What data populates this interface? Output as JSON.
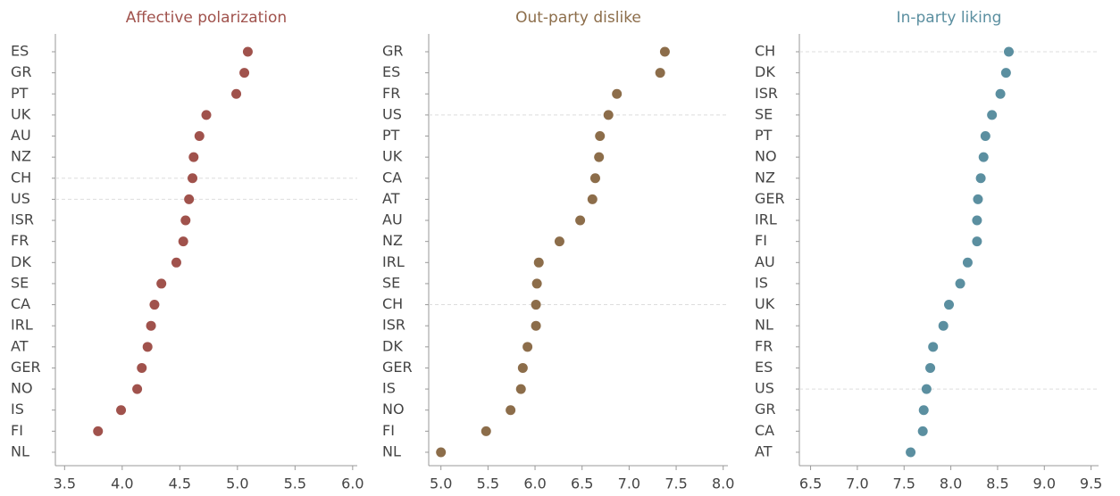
{
  "chart_data": [
    {
      "type": "dot",
      "title": "Affective polarization",
      "color": "#a0524c",
      "categories": [
        "ES",
        "GR",
        "PT",
        "UK",
        "AU",
        "NZ",
        "CH",
        "US",
        "ISR",
        "FR",
        "DK",
        "SE",
        "CA",
        "IRL",
        "AT",
        "GER",
        "NO",
        "IS",
        "FI",
        "NL"
      ],
      "values": [
        5.09,
        5.06,
        4.99,
        4.73,
        4.67,
        4.62,
        4.61,
        4.58,
        4.55,
        4.53,
        4.47,
        4.34,
        4.28,
        4.25,
        4.22,
        4.17,
        4.13,
        3.99,
        3.79,
        null
      ],
      "xlim": [
        3.42,
        6.04
      ],
      "xticks": [
        3.5,
        {
          "value": 4,
          "label": "4.0"
        },
        4.5,
        {
          "value": 5,
          "label": "5.0"
        },
        5.5,
        {
          "value": 6,
          "label": "6.0"
        }
      ],
      "highlight": [
        "CH",
        "US"
      ]
    },
    {
      "type": "dot",
      "title": "Out-party dislike",
      "color": "#8c6d4a",
      "categories": [
        "GR",
        "ES",
        "FR",
        "US",
        "PT",
        "UK",
        "CA",
        "AT",
        "AU",
        "NZ",
        "IRL",
        "SE",
        "CH",
        "ISR",
        "DK",
        "GER",
        "IS",
        "NO",
        "FI",
        "NL"
      ],
      "values": [
        7.38,
        7.33,
        6.87,
        6.78,
        6.69,
        6.68,
        6.64,
        6.61,
        6.48,
        6.26,
        6.04,
        6.02,
        6.01,
        6.01,
        5.92,
        5.87,
        5.85,
        5.74,
        5.48,
        5.0
      ],
      "xlim": [
        4.87,
        8.05
      ],
      "xticks": [
        {
          "value": 5,
          "label": "5.0"
        },
        5.5,
        {
          "value": 6,
          "label": "6.0"
        },
        6.5,
        {
          "value": 7,
          "label": "7.0"
        },
        7.5,
        {
          "value": 8,
          "label": "8.0"
        }
      ],
      "highlight": [
        "CH",
        "US"
      ]
    },
    {
      "type": "dot",
      "title": "In-party liking",
      "color": "#5b8fa0",
      "categories": [
        "CH",
        "DK",
        "ISR",
        "SE",
        "PT",
        "NO",
        "NZ",
        "GER",
        "IRL",
        "FI",
        "AU",
        "IS",
        "UK",
        "NL",
        "FR",
        "ES",
        "US",
        "GR",
        "CA",
        "AT"
      ],
      "values": [
        8.62,
        8.59,
        8.53,
        8.44,
        8.37,
        8.35,
        8.32,
        8.29,
        8.28,
        8.28,
        8.18,
        8.1,
        7.98,
        7.92,
        7.81,
        7.78,
        7.74,
        7.71,
        7.7,
        7.57
      ],
      "xlim": [
        6.38,
        9.58
      ],
      "xticks": [
        6.5,
        {
          "value": 7,
          "label": "7.0"
        },
        7.5,
        {
          "value": 8,
          "label": "8.0"
        },
        8.5,
        {
          "value": 9,
          "label": "9.0"
        },
        9.5
      ],
      "highlight": [
        "CH",
        "US"
      ]
    }
  ]
}
